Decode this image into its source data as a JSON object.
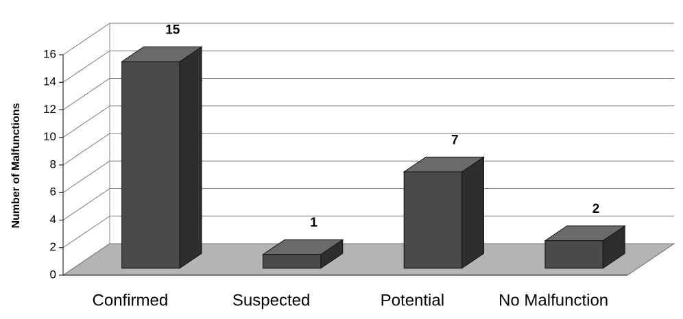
{
  "chart_data": {
    "type": "bar3d",
    "y_label": "Number of Malfunctions",
    "categories": [
      "Confirmed",
      "Suspected",
      "Potential",
      "No Malfunction"
    ],
    "values": [
      15,
      1,
      7,
      2
    ],
    "color": "#4a4a4a",
    "ylim": [
      0,
      16
    ],
    "yticks": [
      0,
      2,
      4,
      6,
      8,
      10,
      12,
      14,
      16
    ],
    "grid": true
  }
}
